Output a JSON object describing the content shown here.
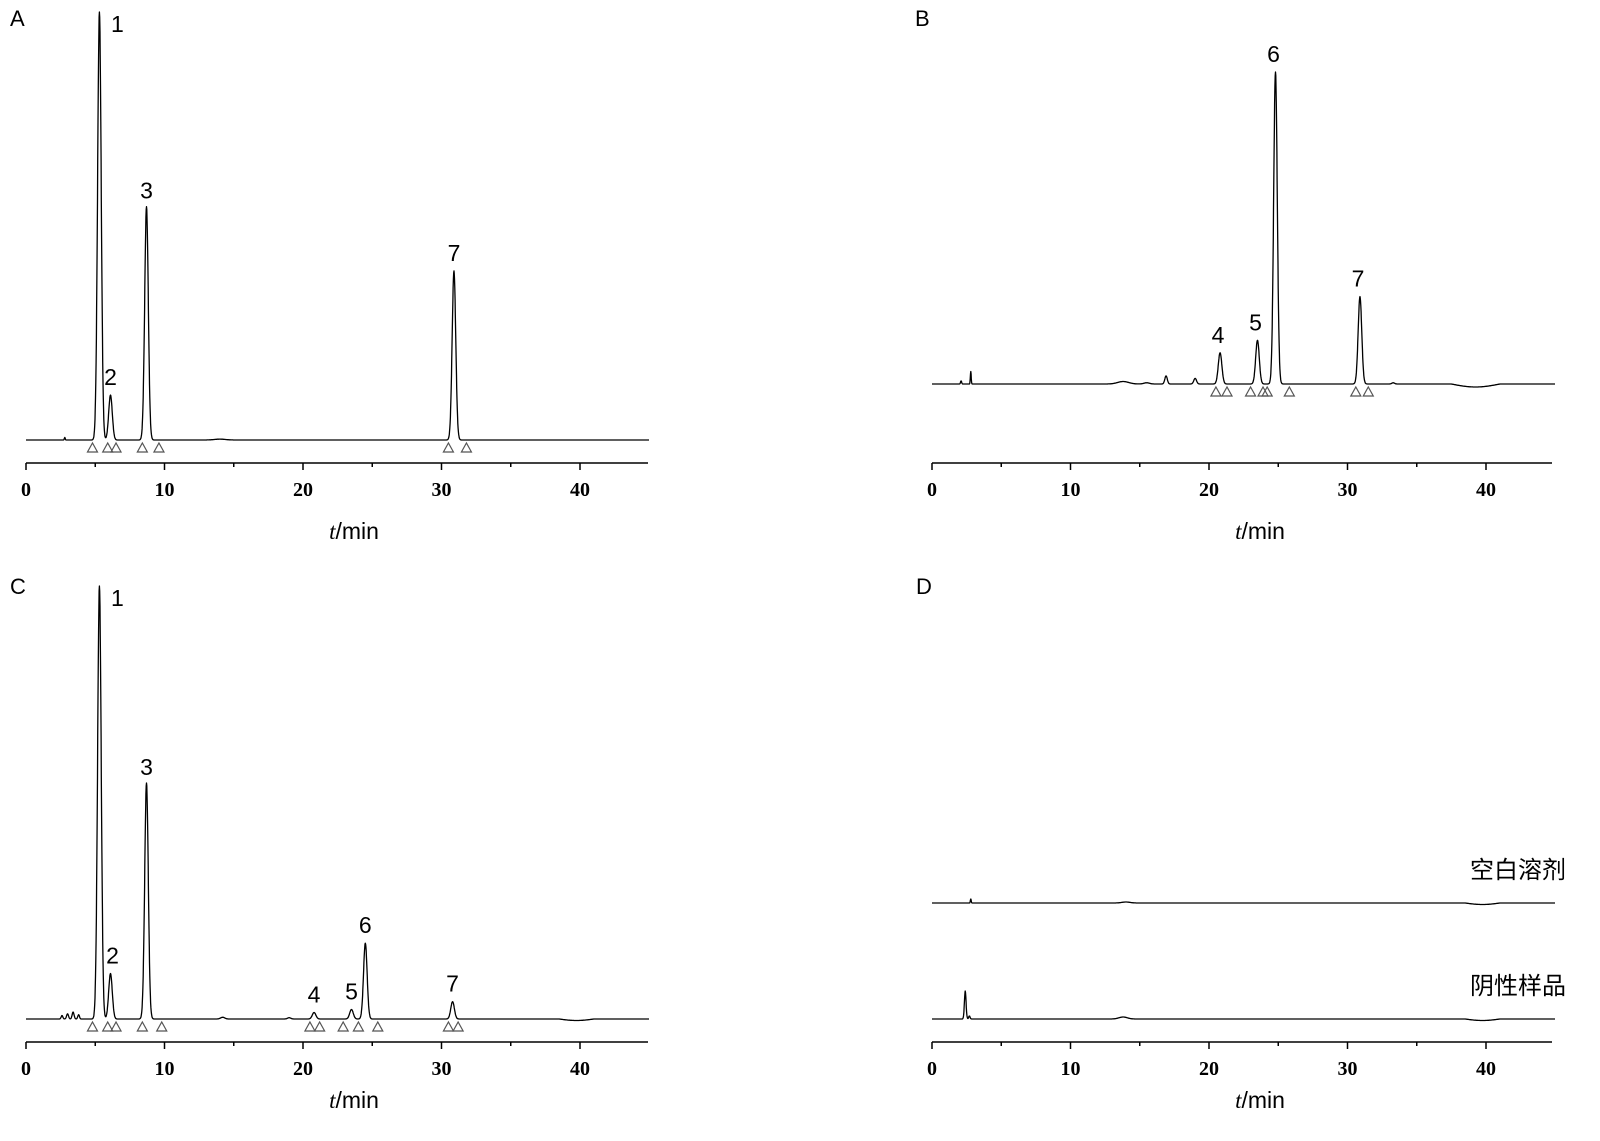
{
  "chart_data": [
    {
      "panel": "A",
      "type": "line",
      "xlabel_var": "t",
      "xlabel_unit": "/min",
      "xlim": [
        0,
        45
      ],
      "x_ticks": [
        0,
        10,
        20,
        30,
        40
      ],
      "peaks": [
        {
          "label": "1",
          "rt": 5.3,
          "height": 1.0
        },
        {
          "label": "2",
          "rt": 6.1,
          "height": 0.105
        },
        {
          "label": "3",
          "rt": 8.7,
          "height": 0.545
        },
        {
          "label": "7",
          "rt": 30.9,
          "height": 0.395
        }
      ],
      "markers": [
        4.8,
        5.9,
        6.5,
        8.4,
        9.6,
        30.5,
        31.8
      ]
    },
    {
      "panel": "B",
      "type": "line",
      "xlabel_var": "t",
      "xlabel_unit": "/min",
      "xlim": [
        0,
        45
      ],
      "x_ticks": [
        0,
        10,
        20,
        30,
        40
      ],
      "peaks": [
        {
          "label": "4",
          "rt": 20.8,
          "height": 0.1
        },
        {
          "label": "5",
          "rt": 23.5,
          "height": 0.14
        },
        {
          "label": "6",
          "rt": 24.8,
          "height": 1.0
        },
        {
          "label": "7",
          "rt": 30.9,
          "height": 0.28
        }
      ],
      "markers": [
        20.5,
        21.3,
        23.0,
        23.9,
        24.2,
        25.8,
        30.6,
        31.5
      ]
    },
    {
      "panel": "C",
      "type": "line",
      "xlabel_var": "t",
      "xlabel_unit": "/min",
      "xlim": [
        0,
        45
      ],
      "x_ticks": [
        0,
        10,
        20,
        30,
        40
      ],
      "peaks": [
        {
          "label": "1",
          "rt": 5.3,
          "height": 1.0
        },
        {
          "label": "2",
          "rt": 6.1,
          "height": 0.105
        },
        {
          "label": "3",
          "rt": 8.7,
          "height": 0.545
        },
        {
          "label": "4",
          "rt": 20.8,
          "height": 0.015
        },
        {
          "label": "5",
          "rt": 23.5,
          "height": 0.022
        },
        {
          "label": "6",
          "rt": 24.5,
          "height": 0.175
        },
        {
          "label": "7",
          "rt": 30.8,
          "height": 0.04
        }
      ],
      "markers": [
        4.8,
        5.9,
        6.5,
        8.4,
        9.8,
        20.5,
        21.2,
        22.9,
        24.0,
        25.4,
        30.5,
        31.2
      ]
    },
    {
      "panel": "D",
      "type": "line",
      "xlabel_var": "t",
      "xlabel_unit": "/min",
      "xlim": [
        0,
        45
      ],
      "x_ticks": [
        0,
        10,
        20,
        30,
        40
      ],
      "series": [
        {
          "name": "空白溶剂"
        },
        {
          "name": "阴性样品"
        }
      ]
    }
  ]
}
